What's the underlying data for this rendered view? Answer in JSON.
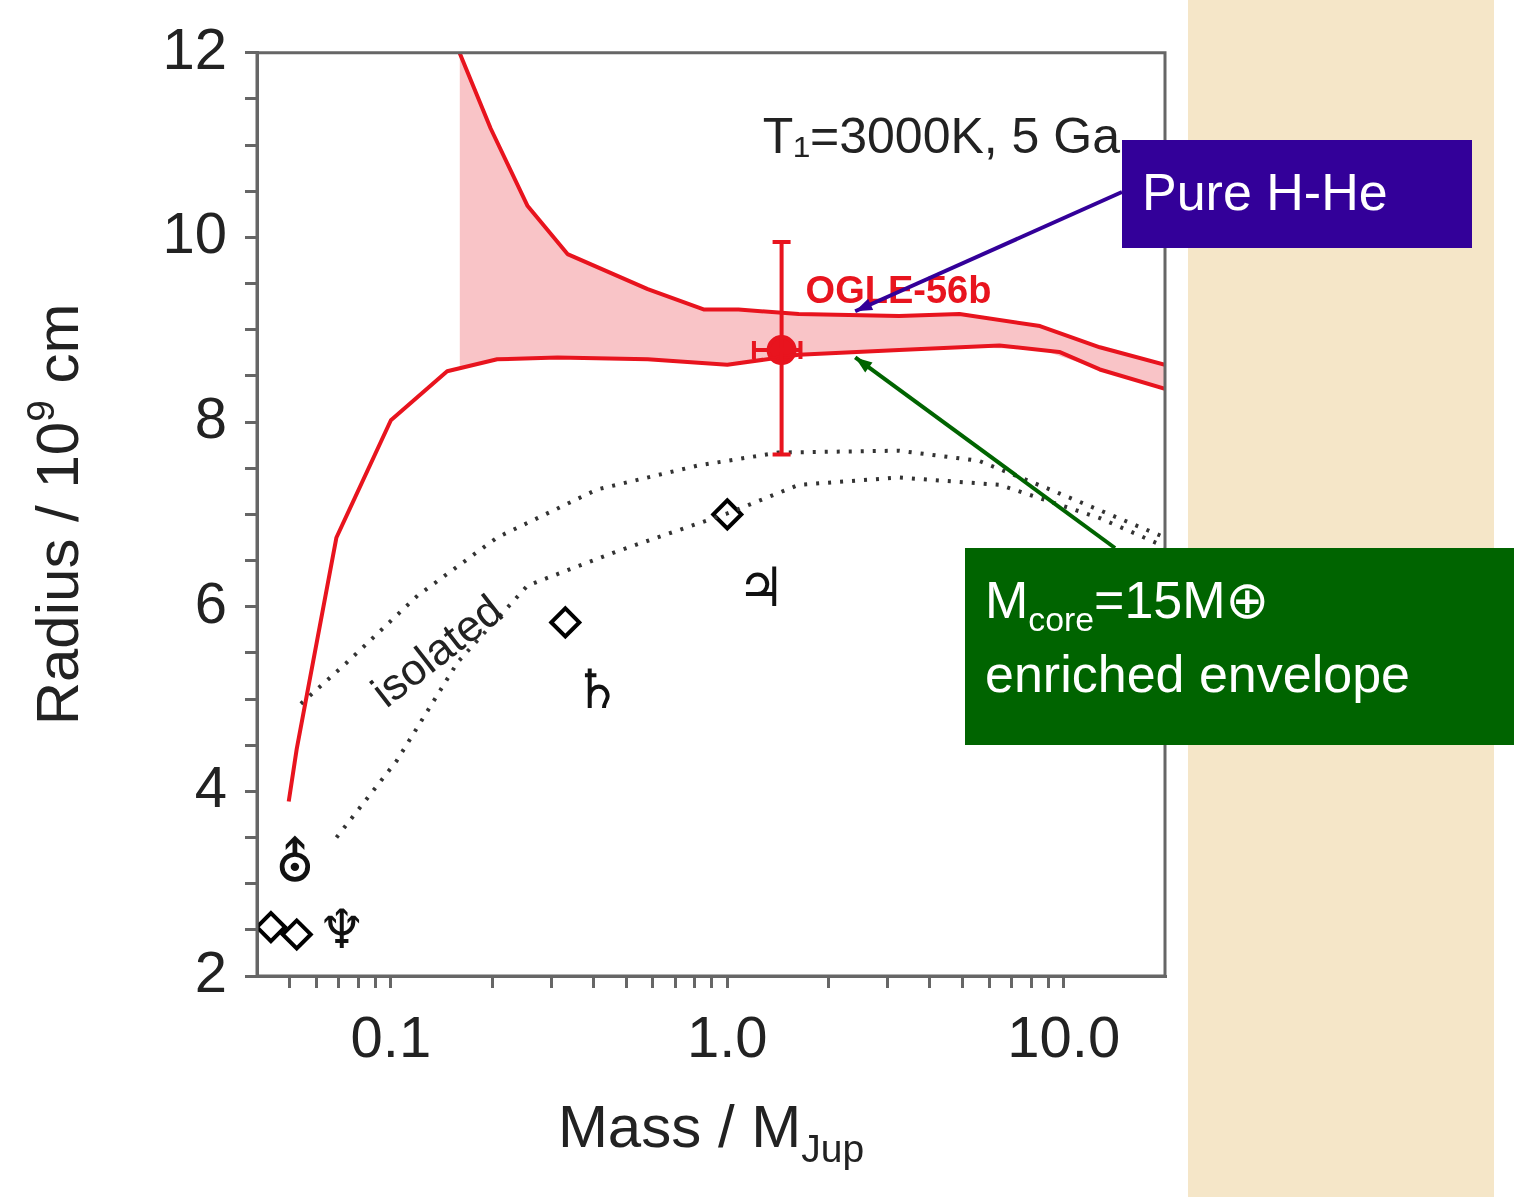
{
  "chart_data": {
    "type": "line",
    "xlabel": "Mass / M$_{Jup}$",
    "ylabel": "Radius / 10$^{9}$ cm",
    "log": "x",
    "xlim": [
      0.04,
      20
    ],
    "ylim": [
      2,
      12
    ],
    "xticks": [
      {
        "value": 0.05,
        "label": null
      },
      {
        "value": 0.06,
        "label": null
      },
      {
        "value": 0.07,
        "label": null
      },
      {
        "value": 0.08,
        "label": null
      },
      {
        "value": 0.09,
        "label": null
      },
      {
        "value": 0.1,
        "label": "0.1"
      },
      {
        "value": 0.2,
        "label": null
      },
      {
        "value": 0.3,
        "label": null
      },
      {
        "value": 0.4,
        "label": null
      },
      {
        "value": 0.5,
        "label": null
      },
      {
        "value": 0.6,
        "label": null
      },
      {
        "value": 0.7,
        "label": null
      },
      {
        "value": 0.8,
        "label": null
      },
      {
        "value": 0.9,
        "label": null
      },
      {
        "value": 1,
        "label": "1.0"
      },
      {
        "value": 2,
        "label": null
      },
      {
        "value": 3,
        "label": null
      },
      {
        "value": 4,
        "label": null
      },
      {
        "value": 5,
        "label": null
      },
      {
        "value": 6,
        "label": null
      },
      {
        "value": 7,
        "label": null
      },
      {
        "value": 8,
        "label": null
      },
      {
        "value": 9,
        "label": null
      },
      {
        "value": 10,
        "label": "10.0"
      }
    ],
    "yticks": [
      2,
      {
        "value": 2.5,
        "label": null
      },
      {
        "value": 3,
        "label": null
      },
      {
        "value": 3.5,
        "label": null
      },
      4,
      {
        "value": 4.5,
        "label": null
      },
      {
        "value": 5,
        "label": null
      },
      {
        "value": 5.5,
        "label": null
      },
      6,
      {
        "value": 6.5,
        "label": null
      },
      {
        "value": 7,
        "label": null
      },
      {
        "value": 7.5,
        "label": null
      },
      8,
      {
        "value": 8.5,
        "label": null
      },
      {
        "value": 9,
        "label": null
      },
      {
        "value": 9.5,
        "label": null
      },
      10,
      {
        "value": 10.5,
        "label": null
      },
      {
        "value": 11,
        "label": null
      },
      {
        "value": 11.5,
        "label": null
      },
      12
    ],
    "series": [
      {
        "type": "line",
        "color": "#e8141e",
        "x": [
          0.16,
          0.198,
          0.255,
          0.335,
          0.58,
          0.85,
          1.08,
          1.63,
          3.24,
          4.9,
          8.5,
          12.8,
          20
        ],
        "values": [
          12,
          11.18,
          10.34,
          9.82,
          9.44,
          9.22,
          9.22,
          9.17,
          9.15,
          9.17,
          9.04,
          8.81,
          8.62
        ],
        "upper": [
          12,
          11.18,
          10.34,
          9.82,
          9.44,
          9.22,
          9.22,
          9.17,
          9.15,
          9.17,
          9.04,
          8.81,
          8.62
        ],
        "lower": [
          8.6,
          8.67,
          8.69,
          8.7,
          8.68,
          8.63,
          8.63,
          8.73,
          8.78,
          8.81,
          8.79,
          8.57,
          8.36
        ]
      },
      {
        "type": "line",
        "color": "#e8141e",
        "x": [
          0.0497,
          0.0525,
          0.0689,
          0.1,
          0.147,
          0.207,
          0.313,
          0.58,
          1.0,
          1.63,
          3.24,
          6.44,
          9.7,
          12.8,
          20
        ],
        "values": [
          3.89,
          4.46,
          6.75,
          8.02,
          8.55,
          8.68,
          8.7,
          8.68,
          8.62,
          8.73,
          8.78,
          8.83,
          8.76,
          8.57,
          8.36
        ]
      },
      {
        "type": "line",
        "color": "#333333",
        "line_style": "dotted",
        "x": [
          0.054,
          0.0742,
          0.12,
          0.207,
          0.41,
          0.82,
          1.42,
          3.24,
          5.6,
          9.1,
          20
        ],
        "values": [
          4.95,
          5.4,
          6.12,
          6.75,
          7.27,
          7.53,
          7.67,
          7.69,
          7.58,
          7.27,
          6.75
        ]
      },
      {
        "type": "line",
        "color": "#333333",
        "line_style": "dotted",
        "x": [
          0.0689,
          0.104,
          0.158,
          0.255,
          0.47,
          1.0,
          1.63,
          3.24,
          6.44,
          12.8,
          20
        ],
        "values": [
          3.5,
          4.33,
          5.4,
          6.23,
          6.6,
          7.01,
          7.32,
          7.4,
          7.32,
          6.96,
          6.65
        ]
      },
      {
        "type": "scatter",
        "color": "#000000",
        "marker": "diamond",
        "x": [
          0.044,
          0.0525,
          0.33,
          1.0
        ],
        "values": [
          2.53,
          2.45,
          5.83,
          7.0
        ],
        "value_labels": [
          "⛢",
          "♆",
          "♄",
          "♃"
        ]
      },
      {
        "type": "scatter",
        "color": "#e8141e",
        "marker": "circle",
        "x": [
          1.45
        ],
        "values": [
          8.78
        ],
        "errors": [
          [
            7.65,
            9.95
          ]
        ],
        "xerrors": [
          [
            1.2,
            1.65
          ]
        ],
        "value_labels": [
          "OGLE-56b"
        ]
      }
    ],
    "annotations": [
      "T₁=3000K, 5 Ga",
      "isolated",
      {
        "text": "Pure H-He",
        "x": 2.4,
        "y": 9.2
      },
      {
        "text": "M$_{core}$=15M⊕\nenriched envelope",
        "x": 2.4,
        "y": 8.7
      }
    ]
  }
}
